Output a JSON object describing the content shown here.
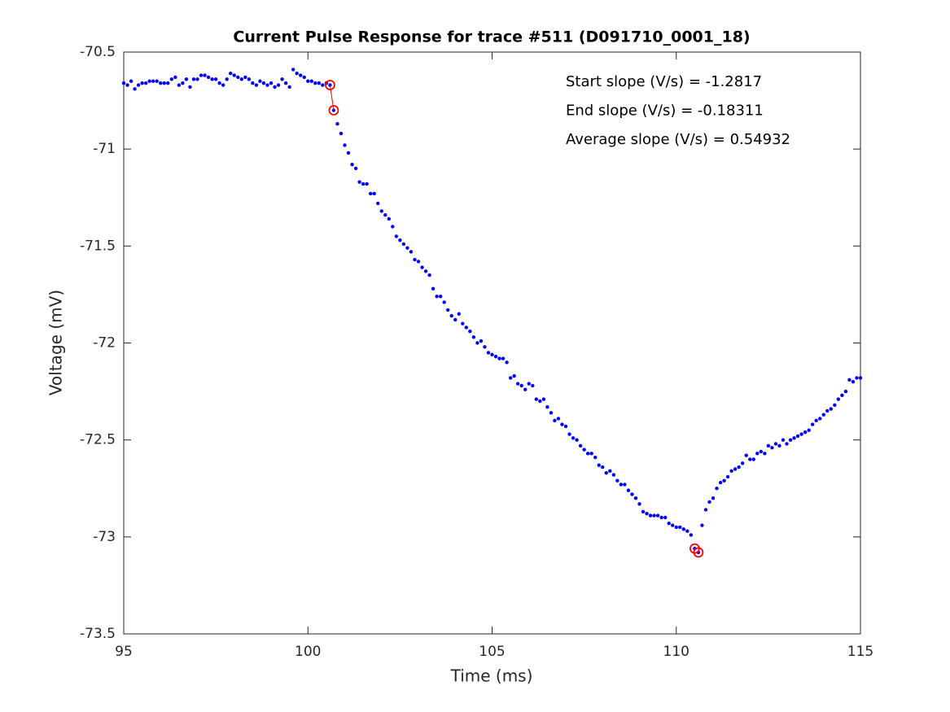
{
  "chart_data": {
    "type": "scatter",
    "title": "Current Pulse Response for trace #511 (D091710_0001_18)",
    "xlabel": "Time (ms)",
    "ylabel": "Voltage (mV)",
    "annotations": [
      "Start slope (V/s) = -1.2817",
      "End slope (V/s) = -0.18311",
      "Average slope (V/s) = 0.54932"
    ],
    "xlim": [
      95,
      115
    ],
    "xticks": [
      95,
      100,
      105,
      110,
      115
    ],
    "ylim": [
      -73.5,
      -70.5
    ],
    "yticks": [
      -70.5,
      -71,
      -71.5,
      -72,
      -72.5,
      -73,
      -73.5
    ],
    "grid": false,
    "series": [
      {
        "color": "#0000ff",
        "marker": "dot",
        "line": false,
        "x": [
          95.0,
          95.1,
          95.2,
          95.3,
          95.4,
          95.5,
          95.6,
          95.7,
          95.8,
          95.9,
          96.0,
          96.1,
          96.2,
          96.3,
          96.4,
          96.5,
          96.6,
          96.7,
          96.8,
          96.9,
          97.0,
          97.1,
          97.2,
          97.3,
          97.4,
          97.5,
          97.6,
          97.7,
          97.8,
          97.9,
          98.0,
          98.1,
          98.2,
          98.3,
          98.4,
          98.5,
          98.6,
          98.7,
          98.8,
          98.9,
          99.0,
          99.1,
          99.2,
          99.3,
          99.4,
          99.5,
          99.6,
          99.7,
          99.8,
          99.9,
          100.0,
          100.1,
          100.2,
          100.3,
          100.4,
          100.5,
          100.6,
          100.7,
          100.8,
          100.9,
          101.0,
          101.1,
          101.2,
          101.3,
          101.4,
          101.5,
          101.6,
          101.7,
          101.8,
          101.9,
          102.0,
          102.1,
          102.2,
          102.3,
          102.4,
          102.5,
          102.6,
          102.7,
          102.8,
          102.9,
          103.0,
          103.1,
          103.2,
          103.3,
          103.4,
          103.5,
          103.6,
          103.7,
          103.8,
          103.9,
          104.0,
          104.1,
          104.2,
          104.3,
          104.4,
          104.5,
          104.6,
          104.7,
          104.8,
          104.9,
          105.0,
          105.1,
          105.2,
          105.3,
          105.4,
          105.5,
          105.6,
          105.7,
          105.8,
          105.9,
          106.0,
          106.1,
          106.2,
          106.3,
          106.4,
          106.5,
          106.6,
          106.7,
          106.8,
          106.9,
          107.0,
          107.1,
          107.2,
          107.3,
          107.4,
          107.5,
          107.6,
          107.7,
          107.8,
          107.9,
          108.0,
          108.1,
          108.2,
          108.3,
          108.4,
          108.5,
          108.6,
          108.7,
          108.8,
          108.9,
          109.0,
          109.1,
          109.2,
          109.3,
          109.4,
          109.5,
          109.6,
          109.7,
          109.8,
          109.9,
          110.0,
          110.1,
          110.2,
          110.3,
          110.4,
          110.5,
          110.6,
          110.7,
          110.8,
          110.9,
          111.0,
          111.1,
          111.2,
          111.3,
          111.4,
          111.5,
          111.6,
          111.7,
          111.8,
          111.9,
          112.0,
          112.1,
          112.2,
          112.3,
          112.4,
          112.5,
          112.6,
          112.7,
          112.8,
          112.9,
          113.0,
          113.1,
          113.2,
          113.3,
          113.4,
          113.5,
          113.6,
          113.7,
          113.8,
          113.9,
          114.0,
          114.1,
          114.2,
          114.3,
          114.4,
          114.5,
          114.6,
          114.7,
          114.8,
          114.9,
          115.0
        ],
        "values": [
          -70.66,
          -70.67,
          -70.65,
          -70.69,
          -70.67,
          -70.66,
          -70.66,
          -70.65,
          -70.65,
          -70.65,
          -70.66,
          -70.66,
          -70.66,
          -70.64,
          -70.63,
          -70.67,
          -70.66,
          -70.64,
          -70.68,
          -70.64,
          -70.64,
          -70.62,
          -70.62,
          -70.63,
          -70.64,
          -70.64,
          -70.66,
          -70.67,
          -70.64,
          -70.61,
          -70.62,
          -70.63,
          -70.64,
          -70.63,
          -70.64,
          -70.66,
          -70.67,
          -70.65,
          -70.66,
          -70.67,
          -70.66,
          -70.68,
          -70.67,
          -70.64,
          -70.66,
          -70.68,
          -70.59,
          -70.61,
          -70.62,
          -70.63,
          -70.65,
          -70.65,
          -70.66,
          -70.66,
          -70.67,
          -70.66,
          -70.67,
          -70.8,
          -70.87,
          -70.92,
          -70.98,
          -71.02,
          -71.08,
          -71.1,
          -71.17,
          -71.18,
          -71.18,
          -71.23,
          -71.23,
          -71.28,
          -71.32,
          -71.34,
          -71.36,
          -71.4,
          -71.45,
          -71.47,
          -71.49,
          -71.51,
          -71.53,
          -71.57,
          -71.58,
          -71.61,
          -71.63,
          -71.65,
          -71.72,
          -71.76,
          -71.76,
          -71.79,
          -71.83,
          -71.86,
          -71.88,
          -71.85,
          -71.9,
          -71.92,
          -71.94,
          -71.97,
          -72.0,
          -71.99,
          -72.02,
          -72.05,
          -72.06,
          -72.07,
          -72.08,
          -72.08,
          -72.1,
          -72.18,
          -72.17,
          -72.21,
          -72.22,
          -72.24,
          -72.21,
          -72.22,
          -72.29,
          -72.3,
          -72.29,
          -72.33,
          -72.36,
          -72.4,
          -72.39,
          -72.42,
          -72.43,
          -72.47,
          -72.49,
          -72.5,
          -72.53,
          -72.55,
          -72.57,
          -72.57,
          -72.59,
          -72.63,
          -72.64,
          -72.67,
          -72.66,
          -72.68,
          -72.71,
          -72.73,
          -72.73,
          -72.76,
          -72.78,
          -72.8,
          -72.83,
          -72.87,
          -72.88,
          -72.89,
          -72.89,
          -72.89,
          -72.9,
          -72.9,
          -72.93,
          -72.94,
          -72.95,
          -72.95,
          -72.96,
          -72.97,
          -72.99,
          -73.06,
          -73.08,
          -72.94,
          -72.86,
          -72.82,
          -72.8,
          -72.75,
          -72.72,
          -72.71,
          -72.69,
          -72.66,
          -72.65,
          -72.64,
          -72.62,
          -72.58,
          -72.6,
          -72.6,
          -72.57,
          -72.56,
          -72.57,
          -72.53,
          -72.54,
          -72.52,
          -72.53,
          -72.5,
          -72.52,
          -72.5,
          -72.49,
          -72.48,
          -72.47,
          -72.46,
          -72.45,
          -72.42,
          -72.4,
          -72.39,
          -72.37,
          -72.35,
          -72.34,
          -72.32,
          -72.29,
          -72.27,
          -72.25,
          -72.19,
          -72.2,
          -72.18,
          -72.18
        ]
      },
      {
        "color": "#ff0000",
        "marker": "circle",
        "line": true,
        "x": [
          100.6,
          100.7
        ],
        "values": [
          -70.67,
          -70.8
        ]
      },
      {
        "color": "#ff0000",
        "marker": "circle",
        "line": false,
        "x": [
          110.5,
          110.6
        ],
        "values": [
          -73.06,
          -73.08
        ]
      }
    ]
  }
}
